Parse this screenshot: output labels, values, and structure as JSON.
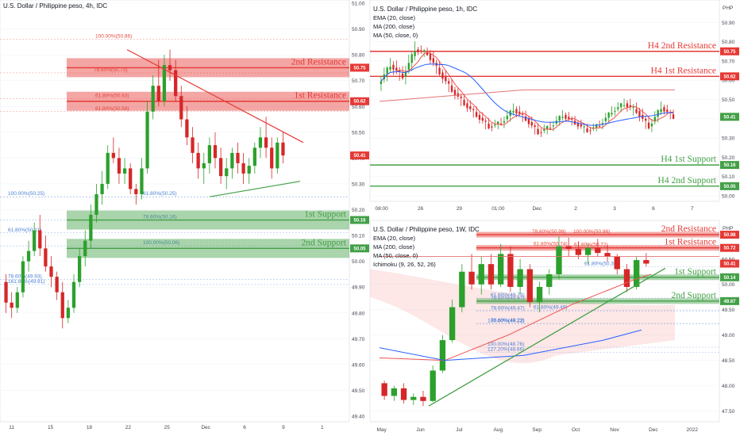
{
  "colors": {
    "bull": "#2ca02c",
    "bear": "#d62728",
    "resist": "#e53935",
    "support": "#43a047",
    "fib": "#e74c3c",
    "fibBlue": "#4a7fd4",
    "ema": "#ef5350",
    "ma200": "#e57373",
    "ma50": "#2962ff",
    "grid": "#f0f3fa",
    "axis": "#434651"
  },
  "panels": {
    "left": {
      "yTicks": [
        "51.00",
        "50.90",
        "50.80",
        "50.70",
        "50.60",
        "50.50",
        "50.40",
        "50.30",
        "50.20",
        "50.10",
        "50.00",
        "49.90",
        "49.80",
        "49.70",
        "49.60",
        "49.50",
        "49.40"
      ],
      "xTicks": [
        "11",
        "15",
        "18",
        "22",
        "25",
        "Dec",
        "6",
        "9",
        "1"
      ],
      "fibs": [
        "100.00%(50.86)",
        "78.60%(50.73)",
        "61.80%(50.63)",
        "61.80%(50.58)",
        "61.80%(50.25)",
        "78.60%(50.16)",
        "100.00%(50.06)",
        "100.00%(50.25)",
        "61.80%(50.11)",
        "78.60%(49.93)",
        "161.80%(49.91)"
      ],
      "levels": [
        {
          "label": "2nd Resistance",
          "value": "50.75",
          "kind": "resistance"
        },
        {
          "label": "1st Resistance",
          "value": "50.62",
          "kind": "resistance"
        },
        {
          "label": "1st Support",
          "value": "50.16",
          "kind": "support"
        },
        {
          "label": "2nd Support",
          "value": "50.05",
          "kind": "support"
        }
      ],
      "lastPrice": "50.41"
    },
    "topRight": {
      "title": "U.S. Dollar / Philippine peso, 1h, IDC",
      "legend": [
        "EMA (20, close)",
        "MA (200, close)",
        "MA (50, close, 0)"
      ],
      "currency": "PHP",
      "yTicks": [
        "50.90",
        "50.80",
        "50.70",
        "50.60",
        "50.50",
        "50.40",
        "50.30",
        "50.20",
        "50.10",
        "50.00"
      ],
      "xTicks": [
        "08:00",
        "26",
        "29",
        "01:00",
        "Dec",
        "2",
        "3",
        "6",
        "7"
      ],
      "levels": [
        {
          "label": "H4 2nd Resistance",
          "value": "50.75",
          "kind": "resistance"
        },
        {
          "label": "H4 1st Resistance",
          "value": "50.62",
          "kind": "resistance"
        },
        {
          "label": "H4 1st Support",
          "value": "50.16",
          "kind": "support"
        },
        {
          "label": "H4 2nd Support",
          "value": "50.05",
          "kind": "support"
        }
      ],
      "lastPrice": "50.41"
    },
    "bottomRight": {
      "title": "U.S. Dollar / Philippine peso, 1W, IDC",
      "legend": [
        "EMA (20, close)",
        "MA (200, close)",
        "MA (50, close, 0)",
        "Ichimoku (9, 26, 52, 26)"
      ],
      "currency": "PHP",
      "yTicks": [
        "50.50",
        "50.00",
        "49.50",
        "49.00",
        "48.50",
        "48.00",
        "47.50"
      ],
      "xTicks": [
        "May",
        "Jun",
        "Jul",
        "Aug",
        "Sep",
        "Oct",
        "Nov",
        "Dec",
        "2022"
      ],
      "fibs": [
        "78.60%(50.98)",
        "61.80%(50.74)",
        "100.00%(50.98)",
        "61.80%(50.72)",
        "61.80%(50.35)",
        "61.80%(49.73)",
        "78.60%(49.67)",
        "78.60%(49.47)",
        "61.80%(49.49)",
        "78.60%(49.23)",
        "100.00%(49.22)",
        "100.00%(48.76)",
        "127.20%(48.66)"
      ],
      "levels": [
        {
          "label": "2nd Resistance",
          "value": "50.98",
          "kind": "resistance"
        },
        {
          "label": "1st Resistance",
          "value": "50.72",
          "kind": "resistance"
        },
        {
          "label": "1st Support",
          "value": "50.14",
          "kind": "support"
        },
        {
          "label": "2nd Support",
          "value": "49.67",
          "kind": "support"
        }
      ],
      "lastPrice": "50.41"
    }
  },
  "chart_data": [
    {
      "type": "candlestick",
      "title": "U.S. Dollar / Philippine peso, 4h, IDC",
      "ylim": [
        49.4,
        51.0
      ],
      "candles": [
        [
          49.92,
          49.95,
          49.8,
          49.84
        ],
        [
          49.84,
          49.88,
          49.78,
          49.82
        ],
        [
          49.82,
          49.9,
          49.8,
          49.88
        ],
        [
          49.88,
          50.02,
          49.86,
          50.0
        ],
        [
          50.0,
          50.08,
          49.96,
          50.04
        ],
        [
          50.04,
          50.15,
          50.02,
          50.12
        ],
        [
          50.12,
          50.18,
          50.02,
          50.05
        ],
        [
          50.05,
          50.1,
          49.96,
          49.98
        ],
        [
          49.98,
          50.02,
          49.9,
          49.94
        ],
        [
          49.94,
          49.96,
          49.85,
          49.88
        ],
        [
          49.88,
          49.92,
          49.74,
          49.78
        ],
        [
          49.78,
          49.85,
          49.76,
          49.82
        ],
        [
          49.82,
          49.95,
          49.8,
          49.92
        ],
        [
          49.92,
          50.05,
          49.9,
          50.02
        ],
        [
          50.02,
          50.12,
          49.98,
          50.08
        ],
        [
          50.08,
          50.22,
          50.05,
          50.18
        ],
        [
          50.18,
          50.3,
          50.15,
          50.26
        ],
        [
          50.26,
          50.35,
          50.22,
          50.3
        ],
        [
          50.3,
          50.45,
          50.28,
          50.42
        ],
        [
          50.42,
          50.48,
          50.38,
          50.4
        ],
        [
          50.4,
          50.44,
          50.3,
          50.34
        ],
        [
          50.34,
          50.4,
          50.3,
          50.36
        ],
        [
          50.36,
          50.38,
          50.26,
          50.28
        ],
        [
          50.28,
          50.3,
          50.22,
          50.26
        ],
        [
          50.26,
          50.4,
          50.24,
          50.36
        ],
        [
          50.36,
          50.62,
          50.34,
          50.58
        ],
        [
          50.58,
          50.72,
          50.55,
          50.68
        ],
        [
          50.68,
          50.78,
          50.6,
          50.62
        ],
        [
          50.62,
          50.8,
          50.6,
          50.76
        ],
        [
          50.76,
          50.82,
          50.7,
          50.74
        ],
        [
          50.74,
          50.78,
          50.62,
          50.64
        ],
        [
          50.64,
          50.68,
          50.52,
          50.55
        ],
        [
          50.55,
          50.6,
          50.45,
          50.48
        ],
        [
          50.48,
          50.52,
          50.38,
          50.42
        ],
        [
          50.42,
          50.46,
          50.32,
          50.36
        ],
        [
          50.36,
          50.42,
          50.3,
          50.38
        ],
        [
          50.38,
          50.48,
          50.34,
          50.45
        ],
        [
          50.45,
          50.5,
          50.36,
          50.4
        ],
        [
          50.4,
          50.44,
          50.3,
          50.33
        ],
        [
          50.33,
          50.4,
          50.28,
          50.36
        ],
        [
          50.36,
          50.44,
          50.32,
          50.42
        ],
        [
          50.42,
          50.46,
          50.34,
          50.38
        ],
        [
          50.38,
          50.42,
          50.3,
          50.34
        ],
        [
          50.34,
          50.4,
          50.3,
          50.37
        ],
        [
          50.37,
          50.46,
          50.34,
          50.44
        ],
        [
          50.44,
          50.52,
          50.4,
          50.48
        ],
        [
          50.48,
          50.56,
          50.4,
          50.44
        ],
        [
          50.44,
          50.48,
          50.32,
          50.36
        ],
        [
          50.36,
          50.48,
          50.34,
          50.46
        ],
        [
          50.46,
          50.5,
          50.38,
          50.41
        ]
      ]
    },
    {
      "type": "candlestick",
      "title": "U.S. Dollar / Philippine peso, 1h, IDC",
      "ylim": [
        50.0,
        51.0
      ],
      "series": [
        {
          "name": "EMA (20, close)"
        },
        {
          "name": "MA (200, close)"
        },
        {
          "name": "MA (50, close, 0)"
        }
      ]
    },
    {
      "type": "candlestick",
      "title": "U.S. Dollar / Philippine peso, 1W, IDC",
      "ylim": [
        47.4,
        51.2
      ],
      "candles": [
        [
          48.05,
          48.1,
          47.72,
          47.8
        ],
        [
          47.8,
          48.0,
          47.7,
          47.95
        ],
        [
          47.95,
          48.05,
          47.65,
          47.72
        ],
        [
          47.72,
          47.85,
          47.62,
          47.78
        ],
        [
          47.78,
          47.9,
          47.6,
          47.7
        ],
        [
          47.7,
          48.4,
          47.68,
          48.3
        ],
        [
          48.3,
          49.0,
          48.25,
          48.9
        ],
        [
          48.9,
          49.7,
          48.85,
          49.55
        ],
        [
          49.55,
          50.4,
          49.45,
          50.25
        ],
        [
          50.25,
          50.6,
          49.9,
          50.0
        ],
        [
          50.0,
          50.55,
          49.8,
          50.4
        ],
        [
          50.4,
          50.6,
          49.9,
          50.0
        ],
        [
          50.0,
          50.8,
          49.95,
          50.6
        ],
        [
          50.6,
          50.75,
          49.85,
          49.95
        ],
        [
          49.95,
          50.5,
          49.8,
          50.3
        ],
        [
          50.3,
          50.4,
          49.55,
          49.65
        ],
        [
          49.65,
          50.05,
          49.45,
          49.95
        ],
        [
          49.95,
          50.3,
          49.8,
          50.2
        ],
        [
          50.2,
          50.95,
          50.1,
          50.75
        ],
        [
          50.75,
          50.92,
          50.55,
          50.7
        ],
        [
          50.7,
          50.85,
          50.5,
          50.58
        ],
        [
          50.58,
          50.8,
          50.4,
          50.72
        ],
        [
          50.72,
          50.9,
          50.55,
          50.62
        ],
        [
          50.62,
          50.78,
          50.45,
          50.55
        ],
        [
          50.55,
          50.6,
          50.2,
          50.3
        ],
        [
          50.3,
          50.4,
          49.85,
          49.95
        ],
        [
          49.95,
          50.55,
          49.9,
          50.48
        ],
        [
          50.48,
          50.62,
          50.35,
          50.41
        ]
      ]
    }
  ]
}
